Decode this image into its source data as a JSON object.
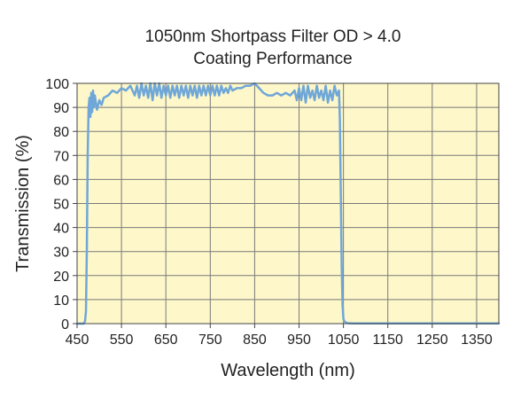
{
  "chart_data": {
    "type": "line",
    "title": "1050nm Shortpass Filter OD > 4.0",
    "subtitle": "Coating Performance",
    "xlabel": "Wavelength (nm)",
    "ylabel": "Transmission (%)",
    "xlim": [
      450,
      1400
    ],
    "ylim": [
      0,
      100
    ],
    "xticks": [
      450,
      550,
      650,
      750,
      850,
      950,
      1050,
      1150,
      1250,
      1350
    ],
    "yticks": [
      0,
      10,
      20,
      30,
      40,
      50,
      60,
      70,
      80,
      90,
      100
    ],
    "grid": true,
    "background_color": "#fdf7c9",
    "grid_color": "#7a7a7a",
    "line_color": "#6fa7d8",
    "series": [
      {
        "name": "",
        "x": [
          450,
          465,
          468,
          470,
          472,
          474,
          476,
          478,
          480,
          482,
          484,
          486,
          488,
          490,
          495,
          500,
          505,
          510,
          520,
          530,
          540,
          550,
          560,
          570,
          580,
          585,
          590,
          595,
          600,
          605,
          610,
          615,
          620,
          625,
          630,
          635,
          640,
          645,
          650,
          655,
          660,
          665,
          670,
          675,
          680,
          685,
          690,
          695,
          700,
          705,
          710,
          715,
          720,
          725,
          730,
          735,
          740,
          745,
          750,
          755,
          760,
          765,
          770,
          775,
          780,
          785,
          790,
          795,
          800,
          810,
          820,
          830,
          840,
          850,
          855,
          860,
          870,
          880,
          890,
          900,
          910,
          920,
          930,
          940,
          945,
          950,
          955,
          960,
          965,
          970,
          975,
          980,
          985,
          990,
          995,
          1000,
          1005,
          1010,
          1015,
          1020,
          1025,
          1030,
          1035,
          1040,
          1042,
          1044,
          1046,
          1048,
          1050,
          1052,
          1055,
          1060,
          1070,
          1100,
          1200,
          1300,
          1400
        ],
        "y": [
          0,
          0,
          1,
          5,
          30,
          70,
          90,
          94,
          86,
          96,
          88,
          97,
          90,
          95,
          89,
          93,
          91,
          94,
          95,
          97,
          96,
          98,
          97,
          99,
          95,
          99,
          94,
          100,
          95,
          99,
          94,
          100,
          93,
          100,
          95,
          100,
          94,
          99,
          95,
          99,
          94,
          99,
          95,
          99,
          94,
          99,
          95,
          99,
          94,
          99,
          95,
          99,
          94,
          99,
          95,
          99,
          95,
          99,
          95,
          99,
          95,
          99,
          95,
          99,
          96,
          98,
          96,
          99,
          97,
          98,
          98,
          99,
          99,
          100,
          99,
          98,
          96,
          95,
          95,
          96,
          95,
          96,
          95,
          97,
          93,
          98,
          93,
          99,
          92,
          99,
          94,
          97,
          93,
          99,
          94,
          97,
          93,
          99,
          92,
          97,
          93,
          99,
          95,
          97,
          85,
          55,
          25,
          8,
          2,
          1,
          0.5,
          0.2,
          0.1,
          0.1,
          0.1,
          0.1,
          0.1
        ]
      }
    ]
  }
}
